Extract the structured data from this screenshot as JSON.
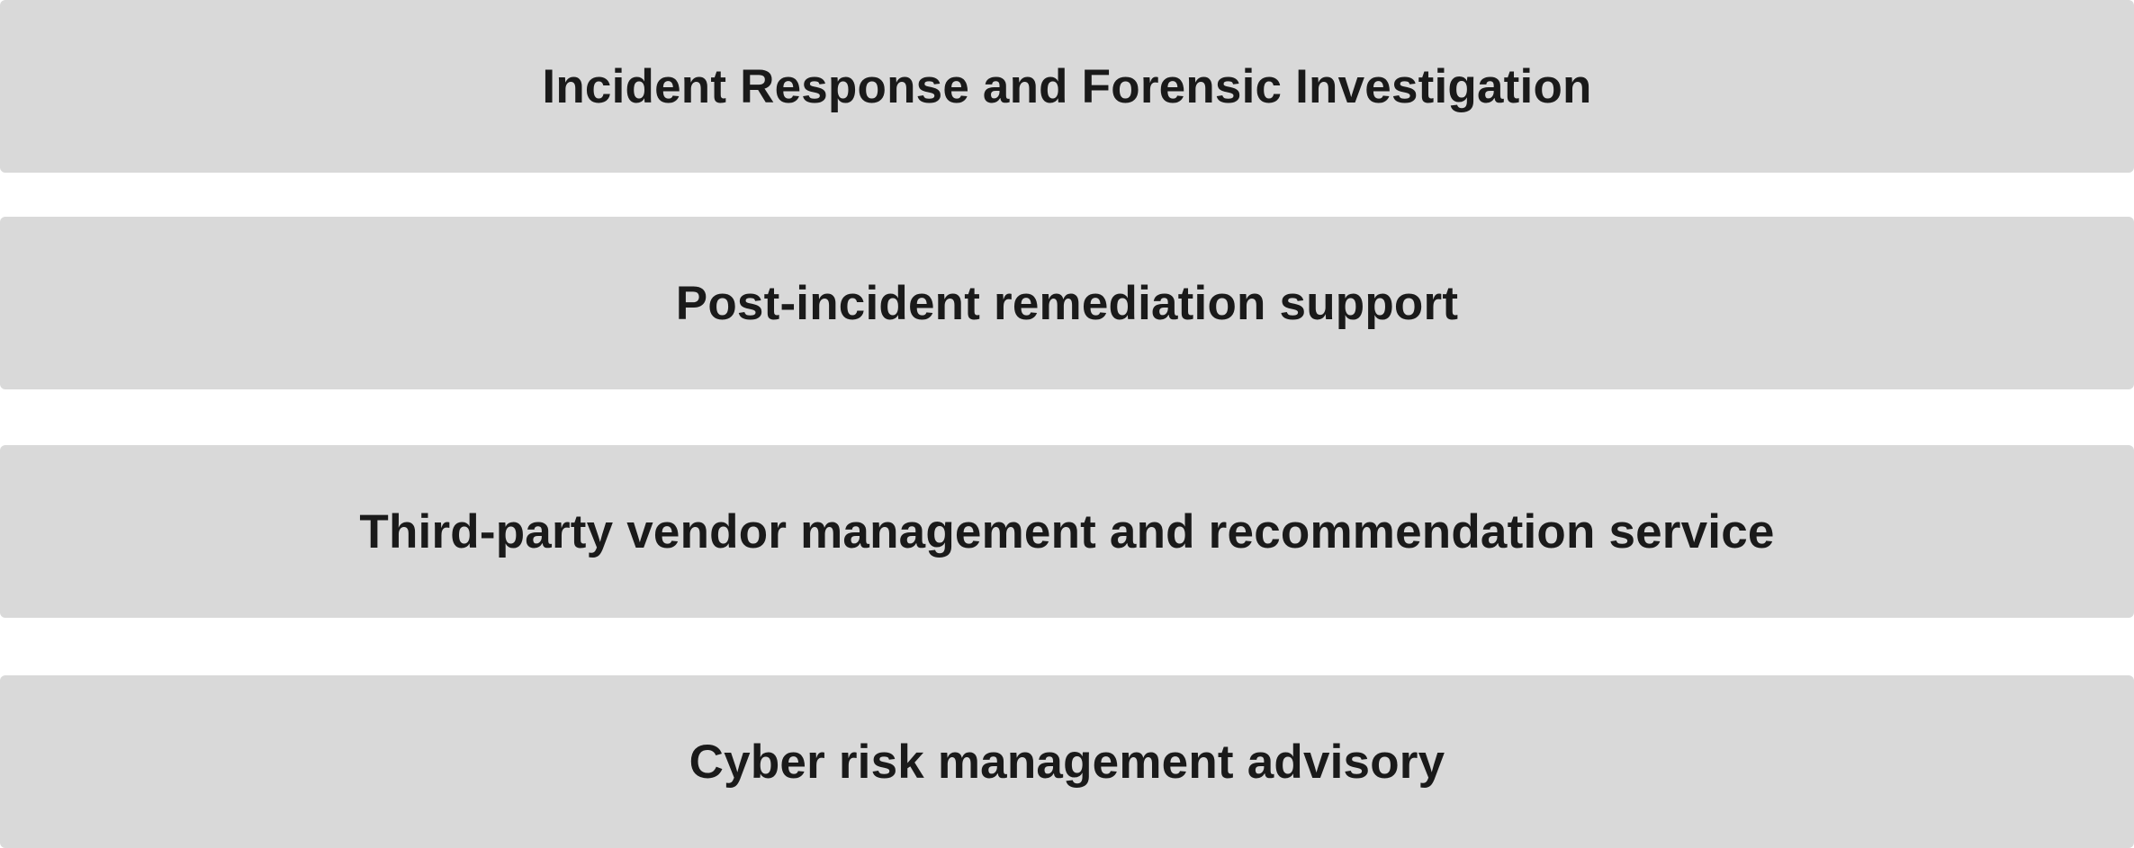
{
  "items": [
    {
      "label": "Incident Response and Forensic Investigation"
    },
    {
      "label": "Post-incident remediation support"
    },
    {
      "label": "Third-party vendor management and recommendation service"
    },
    {
      "label": "Cyber risk management advisory"
    }
  ],
  "colors": {
    "box_fill": "#d9d9d9",
    "text": "#1a1a1a",
    "background": "#ffffff"
  }
}
